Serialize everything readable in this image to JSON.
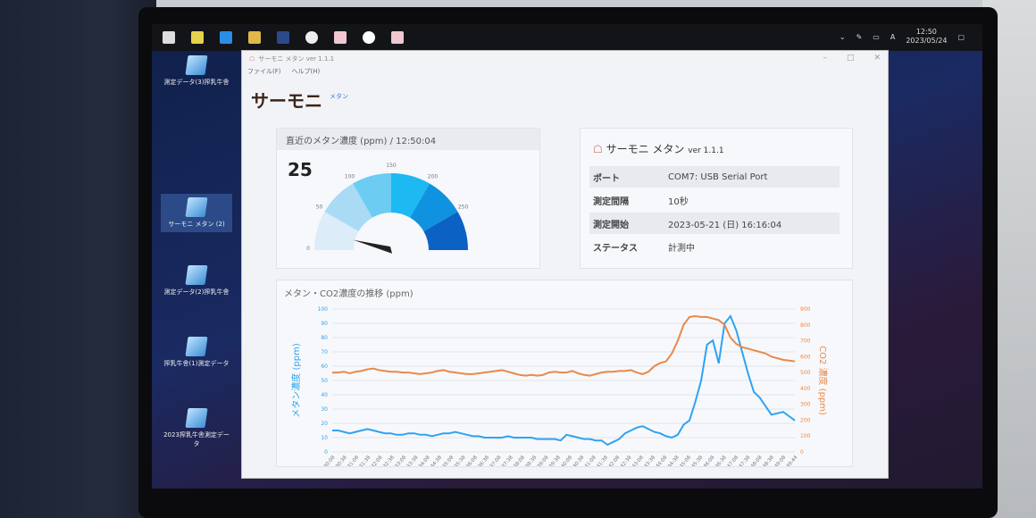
{
  "taskbar": {
    "icons": [
      "windows-icon",
      "file-icon",
      "edge-icon",
      "explorer-icon",
      "app-icon",
      "settings-icon",
      "thermoni-icon",
      "media-icon",
      "thermoni-active-icon"
    ],
    "time": "12:50",
    "date": "2023/05/24",
    "ime": "A"
  },
  "desktop": [
    {
      "label": "測定データ(3)搾乳牛舎"
    },
    {
      "label": "サーモニ メタン (2)",
      "selected": true
    },
    {
      "label": "測定データ(2)搾乳牛舎"
    },
    {
      "label": "搾乳牛舎(1)測定データ"
    },
    {
      "label": "2023搾乳牛舎測定データ"
    }
  ],
  "window": {
    "title": "サーモニ メタン ver 1.1.1",
    "menu": [
      "ファイル(F)",
      "ヘルプ(H)"
    ],
    "controls": [
      "–",
      "□",
      "✕"
    ]
  },
  "logo": {
    "main": "サーモニ",
    "sub": "メタン"
  },
  "gauge": {
    "title": "直近のメタン濃度 (ppm) / 12:50:04",
    "value": 25,
    "min": 0,
    "max": 300,
    "ticks": [
      0,
      50,
      100,
      150,
      200,
      250
    ],
    "colors": [
      "#dcecf8",
      "#a9dbf5",
      "#6cccf2",
      "#1cb9f2",
      "#0f93e0",
      "#0b62c4"
    ]
  },
  "info": {
    "title": "サーモニ メタン",
    "version": "ver 1.1.1",
    "rows": [
      {
        "key": "ポート",
        "value": "COM7: USB Serial Port"
      },
      {
        "key": "測定間隔",
        "value": "10秒"
      },
      {
        "key": "測定開始",
        "value": "2023-05-21 (日) 16:16:04"
      },
      {
        "key": "ステータス",
        "value": "計測中"
      }
    ]
  },
  "chart_data": {
    "type": "line",
    "title": "メタン・CO2濃度の推移 (ppm)",
    "ylabel": "メタン濃度 (ppm)",
    "y2label": "CO2 濃度 (ppm)",
    "ylim": [
      0,
      100
    ],
    "y2lim": [
      0,
      900
    ],
    "yticks": [
      0,
      10,
      20,
      30,
      40,
      50,
      60,
      70,
      80,
      90,
      100
    ],
    "y2ticks": [
      0,
      100,
      200,
      300,
      400,
      500,
      600,
      700,
      800,
      900
    ],
    "grid": true,
    "xticks": [
      "12:30:08",
      "12:30:38",
      "12:31:08",
      "12:31:38",
      "12:32:08",
      "12:32:38",
      "12:33:08",
      "12:33:38",
      "12:34:08",
      "12:34:38",
      "12:35:08",
      "12:35:38",
      "12:36:08",
      "12:36:38",
      "12:37:08",
      "12:37:38",
      "12:38:08",
      "12:38:38",
      "12:39:08",
      "12:39:38",
      "12:40:08",
      "12:40:38",
      "12:41:08",
      "12:41:38",
      "12:42:08",
      "12:42:38",
      "12:43:08",
      "12:43:38",
      "12:44:08",
      "12:44:38",
      "12:45:08",
      "12:45:38",
      "12:46:08",
      "12:46:38",
      "12:47:08",
      "12:47:38",
      "12:48:08",
      "12:48:38",
      "12:49:08",
      "12:49:44"
    ],
    "series": [
      {
        "name": "メタン",
        "axis": "left",
        "color": "#2ea3f2",
        "values": [
          15,
          15,
          14,
          13,
          14,
          15,
          16,
          15,
          14,
          13,
          13,
          12,
          12,
          13,
          13,
          12,
          12,
          11,
          12,
          13,
          13,
          14,
          13,
          12,
          11,
          11,
          10,
          10,
          10,
          10,
          11,
          10,
          10,
          10,
          10,
          9,
          9,
          9,
          9,
          8,
          12,
          11,
          10,
          9,
          9,
          8,
          8,
          5,
          7,
          9,
          13,
          15,
          17,
          18,
          16,
          14,
          13,
          11,
          10,
          12,
          19,
          22,
          35,
          50,
          75,
          78,
          62,
          90,
          95,
          85,
          70,
          55,
          42,
          38,
          32,
          26,
          27,
          28,
          25,
          22
        ]
      },
      {
        "name": "CO2",
        "axis": "right",
        "color": "#e8894a",
        "values": [
          500,
          500,
          505,
          495,
          505,
          510,
          520,
          525,
          515,
          510,
          505,
          505,
          500,
          500,
          495,
          490,
          495,
          500,
          510,
          515,
          505,
          500,
          495,
          490,
          490,
          495,
          500,
          505,
          510,
          515,
          505,
          495,
          485,
          480,
          485,
          480,
          485,
          500,
          505,
          500,
          500,
          510,
          495,
          485,
          480,
          490,
          500,
          505,
          505,
          510,
          510,
          515,
          500,
          490,
          505,
          540,
          560,
          570,
          620,
          700,
          800,
          850,
          855,
          850,
          850,
          840,
          830,
          800,
          720,
          680,
          660,
          650,
          640,
          630,
          620,
          600,
          590,
          580,
          575,
          570
        ]
      }
    ]
  }
}
